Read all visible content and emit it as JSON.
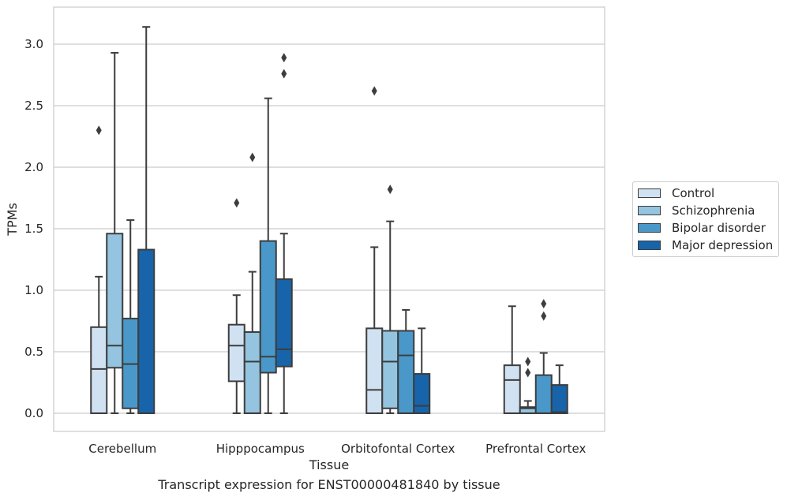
{
  "figure": {
    "caption": "Transcript expression for ENST00000481840 by tissue"
  },
  "chart_data": {
    "type": "box",
    "title": "",
    "xlabel": "Tissue",
    "ylabel": "TPMs",
    "ylim": [
      -0.15,
      3.32
    ],
    "yticks": [
      0.0,
      0.5,
      1.0,
      1.5,
      2.0,
      2.5,
      3.0
    ],
    "ytick_labels": [
      "0.0",
      "0.5",
      "1.0",
      "1.5",
      "2.0",
      "2.5",
      "3.0"
    ],
    "grid": "horizontal",
    "legend_position": "right",
    "categories": [
      "Cerebellum",
      "Hipppocampus",
      "Orbitofontal Cortex",
      "Prefrontal Cortex"
    ],
    "series": [
      {
        "name": "Control",
        "color": "#d0e1f2",
        "boxes": [
          {
            "whislo": 0.0,
            "q1": 0.0,
            "med": 0.36,
            "q3": 0.7,
            "whishi": 1.11,
            "fliers": [
              2.3
            ]
          },
          {
            "whislo": 0.0,
            "q1": 0.26,
            "med": 0.55,
            "q3": 0.72,
            "whishi": 0.96,
            "fliers": [
              1.71
            ]
          },
          {
            "whislo": 0.0,
            "q1": 0.0,
            "med": 0.19,
            "q3": 0.69,
            "whishi": 1.35,
            "fliers": [
              2.62
            ]
          },
          {
            "whislo": 0.0,
            "q1": 0.0,
            "med": 0.27,
            "q3": 0.39,
            "whishi": 0.87,
            "fliers": []
          }
        ]
      },
      {
        "name": "Schizophrenia",
        "color": "#94c4df",
        "boxes": [
          {
            "whislo": 0.0,
            "q1": 0.37,
            "med": 0.55,
            "q3": 1.46,
            "whishi": 2.93,
            "fliers": []
          },
          {
            "whislo": 0.0,
            "q1": 0.0,
            "med": 0.42,
            "q3": 0.66,
            "whishi": 1.15,
            "fliers": [
              2.08
            ]
          },
          {
            "whislo": 0.0,
            "q1": 0.04,
            "med": 0.42,
            "q3": 0.67,
            "whishi": 1.56,
            "fliers": [
              1.82
            ]
          },
          {
            "whislo": 0.0,
            "q1": 0.0,
            "med": 0.04,
            "q3": 0.05,
            "whishi": 0.1,
            "fliers": [
              0.33,
              0.42
            ]
          }
        ]
      },
      {
        "name": "Bipolar disorder",
        "color": "#4a98c9",
        "boxes": [
          {
            "whislo": 0.0,
            "q1": 0.04,
            "med": 0.4,
            "q3": 0.77,
            "whishi": 1.57,
            "fliers": []
          },
          {
            "whislo": 0.0,
            "q1": 0.33,
            "med": 0.46,
            "q3": 1.4,
            "whishi": 2.56,
            "fliers": []
          },
          {
            "whislo": 0.0,
            "q1": 0.0,
            "med": 0.47,
            "q3": 0.67,
            "whishi": 0.84,
            "fliers": []
          },
          {
            "whislo": 0.0,
            "q1": 0.0,
            "med": 0.0,
            "q3": 0.31,
            "whishi": 0.49,
            "fliers": [
              0.79,
              0.89
            ]
          }
        ]
      },
      {
        "name": "Major depression",
        "color": "#1764ab",
        "boxes": [
          {
            "whislo": 0.0,
            "q1": 0.0,
            "med": 0.0,
            "q3": 1.33,
            "whishi": 3.14,
            "fliers": []
          },
          {
            "whislo": 0.0,
            "q1": 0.38,
            "med": 0.52,
            "q3": 1.09,
            "whishi": 1.46,
            "fliers": [
              2.76,
              2.89
            ]
          },
          {
            "whislo": 0.0,
            "q1": 0.0,
            "med": 0.06,
            "q3": 0.32,
            "whishi": 0.69,
            "fliers": []
          },
          {
            "whislo": 0.0,
            "q1": 0.0,
            "med": 0.01,
            "q3": 0.23,
            "whishi": 0.39,
            "fliers": []
          }
        ]
      }
    ]
  }
}
